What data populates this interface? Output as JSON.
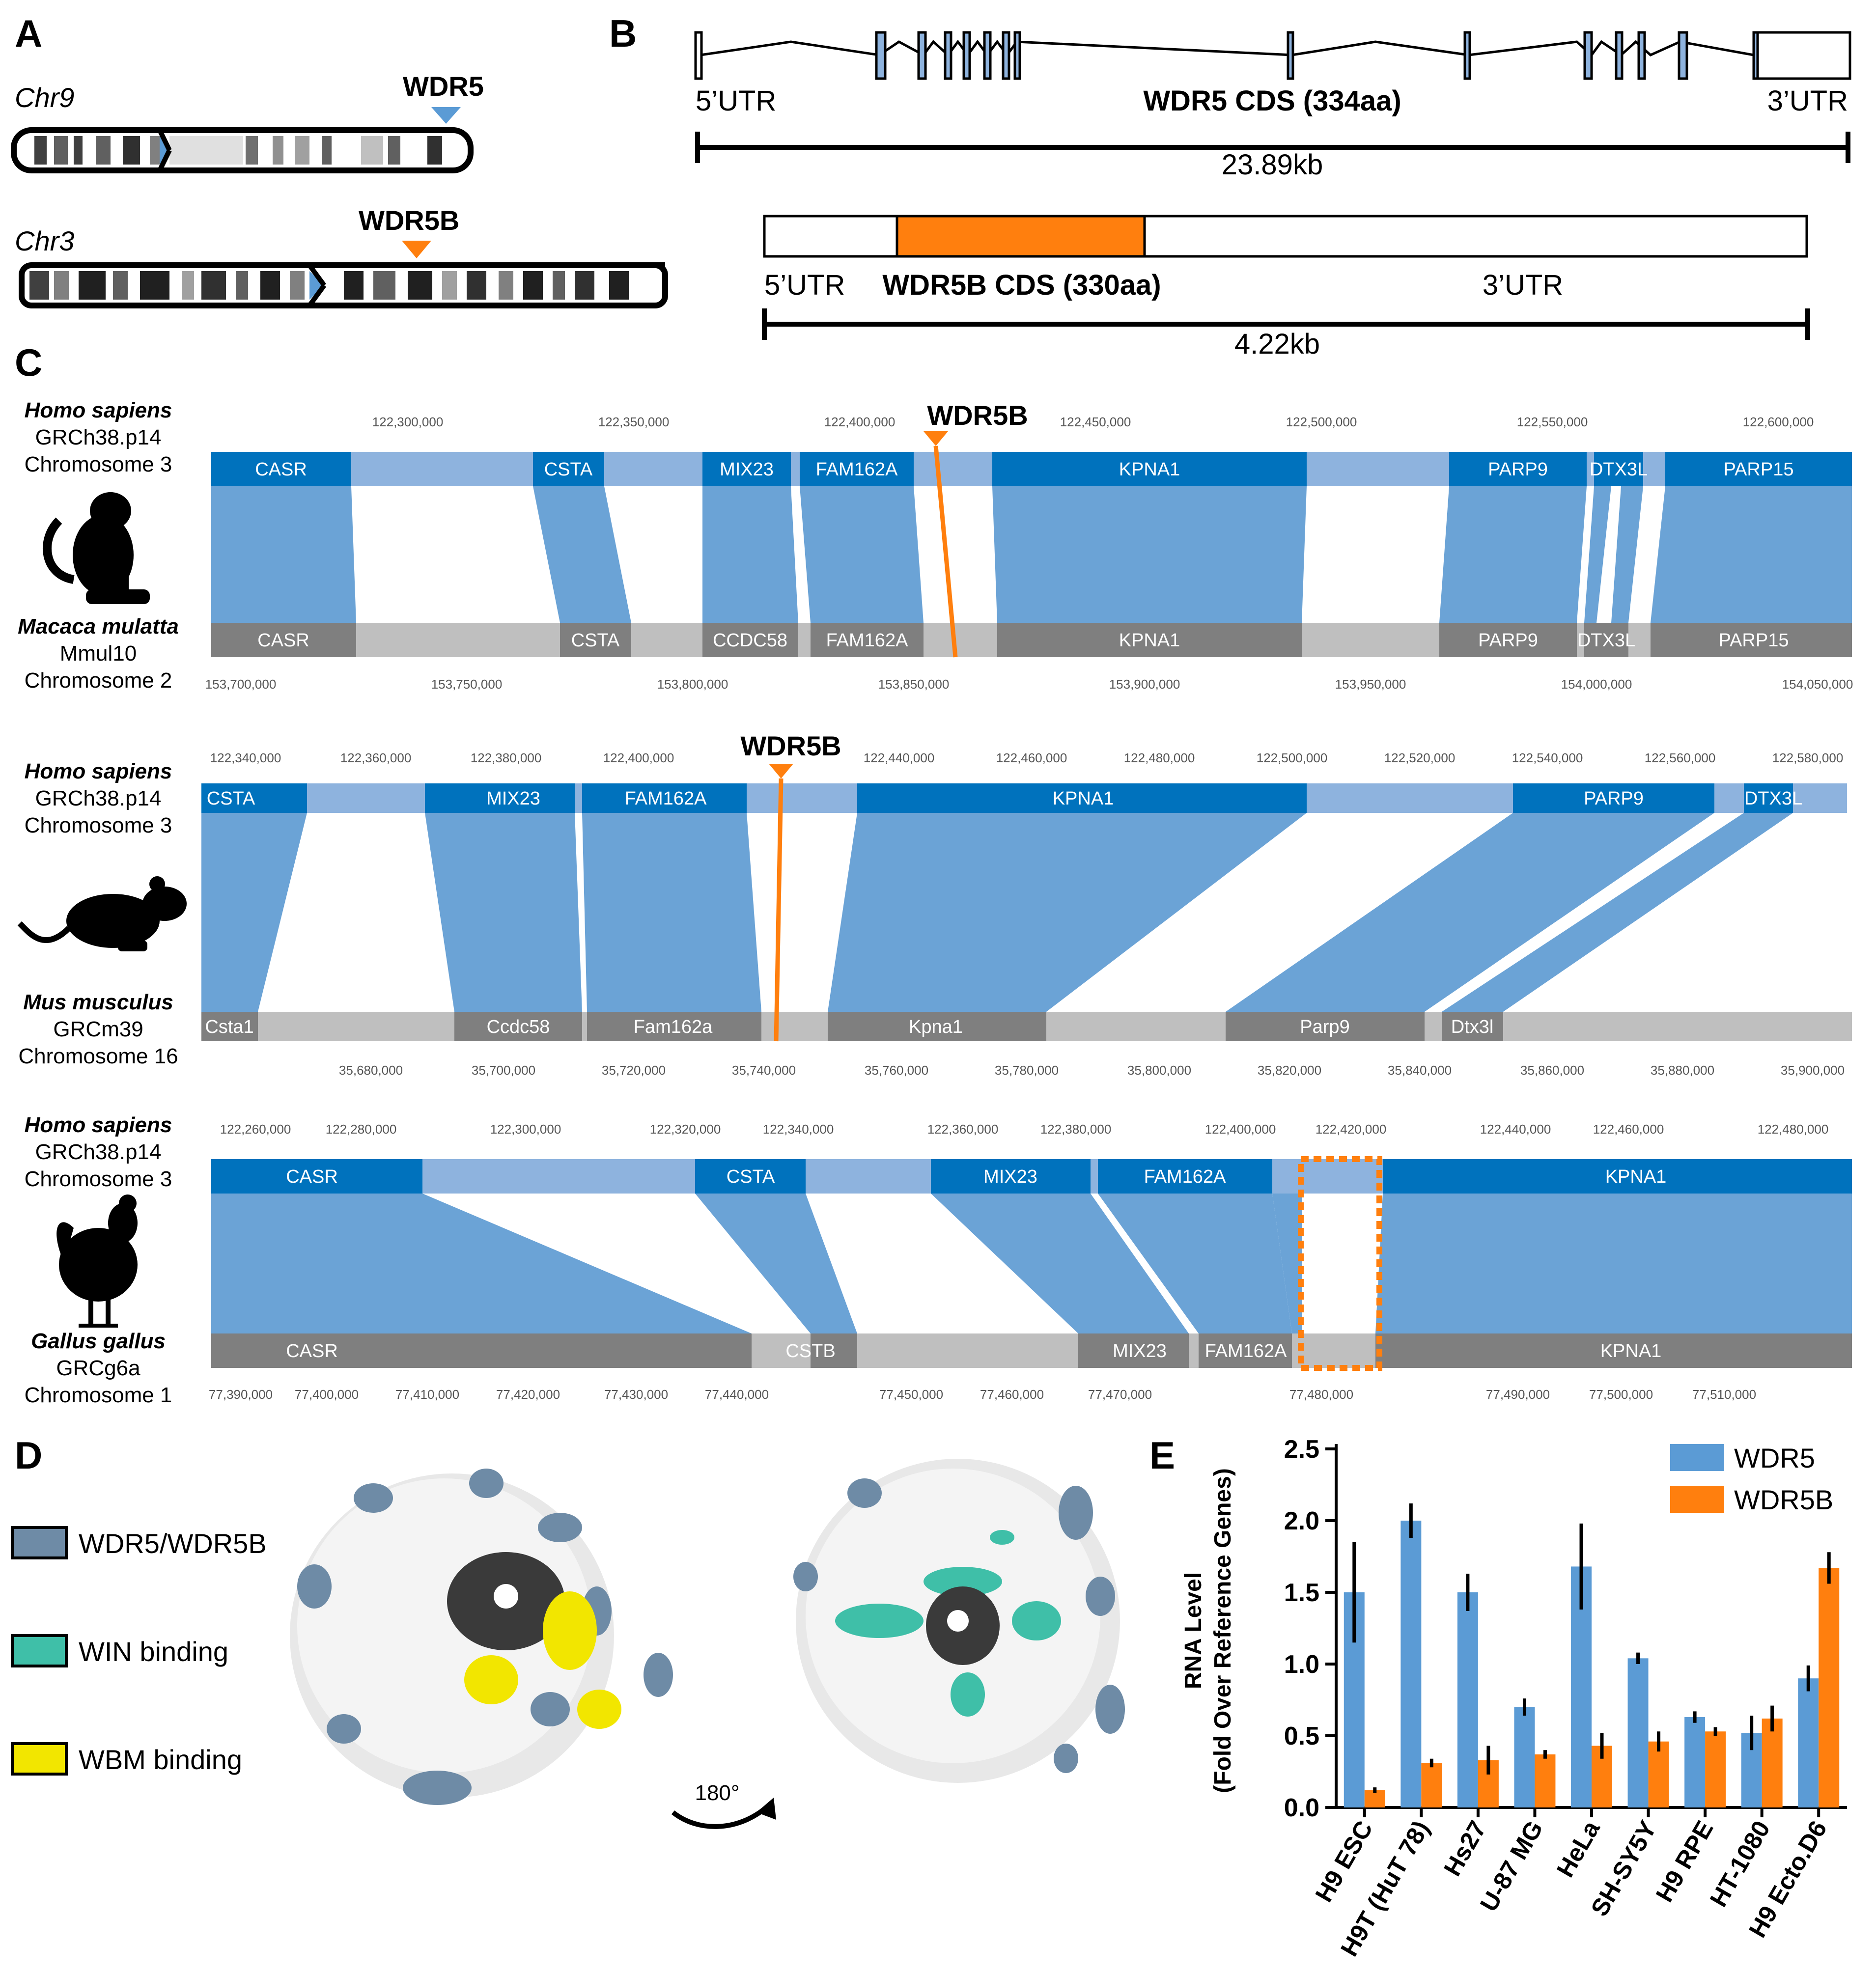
{
  "colors": {
    "blue": "#5b9bd5",
    "synteny": "#6ba3d6",
    "gene_blue": "#0072bd",
    "light_blue": "#8eb3de",
    "gray": "#7f7f7f",
    "light_gray": "#bfbfbf",
    "orange": "#ff7f0e",
    "cyan": "#3fbfa8",
    "yellow": "#f2e600",
    "slate": "#6e8ba6"
  },
  "panel_a": {
    "label": "A",
    "chr9": {
      "name": "Chr9",
      "gene": "WDR5"
    },
    "chr3": {
      "name": "Chr3",
      "gene": "WDR5B"
    }
  },
  "panel_b": {
    "label": "B",
    "wdr5": {
      "utr5": "5’UTR",
      "cds": "WDR5 CDS (334aa)",
      "utr3": "3’UTR",
      "length": "23.89kb"
    },
    "wdr5b": {
      "utr5": "5’UTR",
      "cds": "WDR5B CDS (330aa)",
      "utr3": "3’UTR",
      "length": "4.22kb"
    }
  },
  "panel_c": {
    "label": "C",
    "marker_label": "WDR5B",
    "rows": [
      {
        "species_top": "Homo sapiens",
        "assembly_top": "GRCh38.p14",
        "chrom_top": "Chromosome 3",
        "species_bottom": "Macaca mulatta",
        "assembly_bottom": "Mmul10",
        "chrom_bottom": "Chromosome 2",
        "ticks_top": [
          "122,300,000",
          "122,350,000",
          "122,400,000",
          "122,450,000",
          "122,500,000",
          "122,550,000",
          "122,600,000"
        ],
        "ticks_bottom": [
          "153,700,000",
          "153,750,000",
          "153,800,000",
          "153,850,000",
          "153,900,000",
          "153,950,000",
          "154,000,000",
          "154,050,000"
        ],
        "genes_top": [
          "CASR",
          "CSTA",
          "MIX23",
          "FAM162A",
          "KPNA1",
          "PARP9",
          "DTX3L",
          "PARP15"
        ],
        "genes_bottom": [
          "CASR",
          "CSTA",
          "CCDC58",
          "FAM162A",
          "KPNA1",
          "PARP9",
          "DTX3L",
          "PARP15"
        ]
      },
      {
        "species_top": "Homo sapiens",
        "assembly_top": "GRCh38.p14",
        "chrom_top": "Chromosome 3",
        "species_bottom": "Mus musculus",
        "assembly_bottom": "GRCm39",
        "chrom_bottom": "Chromosome 16",
        "ticks_top": [
          "122,340,000",
          "122,360,000",
          "122,380,000",
          "122,400,000",
          "122,440,000",
          "122,460,000",
          "122,480,000",
          "122,500,000",
          "122,520,000",
          "122,540,000",
          "122,560,000",
          "122,580,000"
        ],
        "ticks_bottom": [
          "35,680,000",
          "35,700,000",
          "35,720,000",
          "35,740,000",
          "35,760,000",
          "35,780,000",
          "35,800,000",
          "35,820,000",
          "35,840,000",
          "35,860,000",
          "35,880,000",
          "35,900,000"
        ],
        "genes_top": [
          "CSTA",
          "MIX23",
          "FAM162A",
          "KPNA1",
          "PARP9",
          "DTX3L"
        ],
        "genes_bottom": [
          "Csta1",
          "Ccdc58",
          "Fam162a",
          "Kpna1",
          "Parp9",
          "Dtx3l"
        ]
      },
      {
        "species_top": "Homo sapiens",
        "assembly_top": "GRCh38.p14",
        "chrom_top": "Chromosome 3",
        "species_bottom": "Gallus gallus",
        "assembly_bottom": "GRCg6a",
        "chrom_bottom": "Chromosome 1",
        "ticks_top": [
          "122,260,000",
          "122,280,000",
          "122,300,000",
          "122,320,000",
          "122,340,000",
          "122,360,000",
          "122,380,000",
          "122,400,000",
          "122,420,000",
          "122,440,000",
          "122,460,000",
          "122,480,000"
        ],
        "ticks_bottom": [
          "77,390,000",
          "77,400,000",
          "77,410,000",
          "77,420,000",
          "77,430,000",
          "77,440,000",
          "77,450,000",
          "77,460,000",
          "77,470,000",
          "77,480,000",
          "77,490,000",
          "77,500,000",
          "77,510,000"
        ],
        "genes_top": [
          "CASR",
          "CSTA",
          "MIX23",
          "FAM162A",
          "KPNA1"
        ],
        "genes_bottom": [
          "CASR",
          "CSTB",
          "MIX23",
          "FAM162A",
          "KPNA1"
        ]
      }
    ]
  },
  "panel_d": {
    "label": "D",
    "legend": [
      "WDR5/WDR5B",
      "WIN binding",
      "WBM binding"
    ],
    "rotation": "180°"
  },
  "chart_data": {
    "type": "bar",
    "title": "E",
    "ylabel_line1": "RNA Level",
    "ylabel_line2": "(Fold Over Reference Genes)",
    "xlabel": "",
    "ylim": [
      0,
      2.5
    ],
    "yticks": [
      "0.0",
      "0.5",
      "1.0",
      "1.5",
      "2.0",
      "2.5"
    ],
    "categories": [
      "H9 ESC",
      "H9T (HuT 78)",
      "Hs27",
      "U-87 MG",
      "HeLa",
      "SH-SY5Y",
      "H9 RPE",
      "HT-1080",
      "H9 Ecto.D6"
    ],
    "series": [
      {
        "name": "WDR5",
        "values": [
          1.5,
          2.0,
          1.5,
          0.7,
          1.68,
          1.04,
          0.63,
          0.52,
          0.9
        ],
        "errors": [
          0.35,
          0.12,
          0.13,
          0.06,
          0.3,
          0.04,
          0.04,
          0.12,
          0.09
        ]
      },
      {
        "name": "WDR5B",
        "values": [
          0.12,
          0.31,
          0.33,
          0.37,
          0.43,
          0.46,
          0.53,
          0.62,
          1.67
        ],
        "errors": [
          0.02,
          0.03,
          0.1,
          0.03,
          0.09,
          0.07,
          0.03,
          0.09,
          0.11
        ]
      }
    ]
  }
}
